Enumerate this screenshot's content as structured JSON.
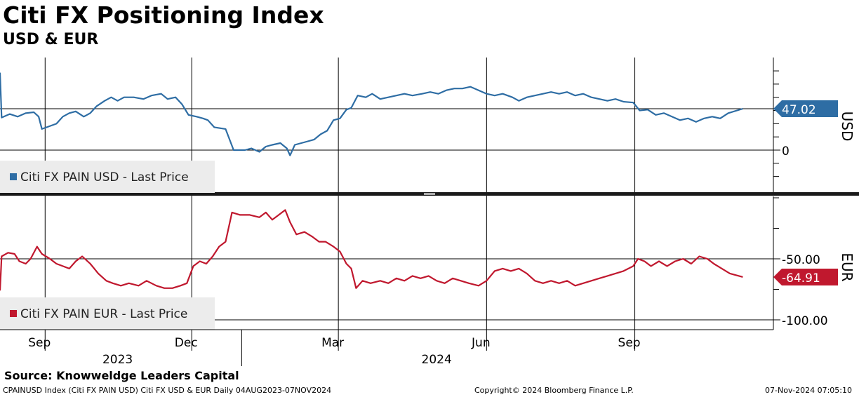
{
  "header": {
    "title": "Citi FX Positioning Index",
    "subtitle": "USD & EUR"
  },
  "footer": {
    "source": "Source: Knowweldge Leaders Capital",
    "ticker": "CPAINUSD Index (Citi FX PAIN USD) Citi FX USD & EUR  Daily 04AUG2023-07NOV2024",
    "copyright": "Copyright© 2024 Bloomberg Finance L.P.",
    "timestamp": "07-Nov-2024 07:05:10"
  },
  "chart_data": [
    {
      "type": "line",
      "panel": "top",
      "axis_label": "USD",
      "y_ticks": [
        0
      ],
      "y_tick_labels": [
        "0"
      ],
      "ylim": [
        -40,
        90
      ],
      "grid": true,
      "legend": "bottom-left",
      "last_value_label": "47.02",
      "color": "#2e6da4",
      "series": [
        {
          "name": "Citi FX PAIN USD - Last Price",
          "points": [
            [
              "2023-08-04",
              88
            ],
            [
              "2023-08-05",
              37
            ],
            [
              "2023-08-10",
              41
            ],
            [
              "2023-08-15",
              38
            ],
            [
              "2023-08-20",
              42
            ],
            [
              "2023-08-25",
              43
            ],
            [
              "2023-08-28",
              38
            ],
            [
              "2023-08-30",
              24
            ],
            [
              "2023-09-05",
              28
            ],
            [
              "2023-09-08",
              30
            ],
            [
              "2023-09-12",
              38
            ],
            [
              "2023-09-16",
              42
            ],
            [
              "2023-09-20",
              44
            ],
            [
              "2023-09-25",
              38
            ],
            [
              "2023-09-29",
              42
            ],
            [
              "2023-10-03",
              50
            ],
            [
              "2023-10-08",
              56
            ],
            [
              "2023-10-12",
              60
            ],
            [
              "2023-10-16",
              56
            ],
            [
              "2023-10-20",
              60
            ],
            [
              "2023-10-26",
              60
            ],
            [
              "2023-11-01",
              58
            ],
            [
              "2023-11-06",
              62
            ],
            [
              "2023-11-12",
              64
            ],
            [
              "2023-11-16",
              58
            ],
            [
              "2023-11-21",
              60
            ],
            [
              "2023-11-25",
              52
            ],
            [
              "2023-11-29",
              40
            ],
            [
              "2023-12-04",
              38
            ],
            [
              "2023-12-08",
              36
            ],
            [
              "2023-12-11",
              34
            ],
            [
              "2023-12-15",
              26
            ],
            [
              "2023-12-22",
              24
            ],
            [
              "2023-12-27",
              0
            ],
            [
              "2024-01-03",
              0
            ],
            [
              "2024-01-07",
              2
            ],
            [
              "2024-01-12",
              -2
            ],
            [
              "2024-01-16",
              4
            ],
            [
              "2024-01-20",
              6
            ],
            [
              "2024-01-25",
              8
            ],
            [
              "2024-01-29",
              2
            ],
            [
              "2024-01-31",
              -6
            ],
            [
              "2024-02-03",
              6
            ],
            [
              "2024-02-07",
              8
            ],
            [
              "2024-02-11",
              10
            ],
            [
              "2024-02-15",
              12
            ],
            [
              "2024-02-19",
              18
            ],
            [
              "2024-02-23",
              22
            ],
            [
              "2024-02-27",
              34
            ],
            [
              "2024-03-02",
              36
            ],
            [
              "2024-03-06",
              46
            ],
            [
              "2024-03-09",
              48
            ],
            [
              "2024-03-13",
              62
            ],
            [
              "2024-03-18",
              60
            ],
            [
              "2024-03-22",
              64
            ],
            [
              "2024-03-27",
              58
            ],
            [
              "2024-04-01",
              60
            ],
            [
              "2024-04-06",
              62
            ],
            [
              "2024-04-11",
              64
            ],
            [
              "2024-04-16",
              62
            ],
            [
              "2024-04-22",
              64
            ],
            [
              "2024-04-27",
              66
            ],
            [
              "2024-05-02",
              64
            ],
            [
              "2024-05-07",
              68
            ],
            [
              "2024-05-12",
              70
            ],
            [
              "2024-05-17",
              70
            ],
            [
              "2024-05-22",
              72
            ],
            [
              "2024-05-27",
              68
            ],
            [
              "2024-06-01",
              64
            ],
            [
              "2024-06-06",
              62
            ],
            [
              "2024-06-11",
              64
            ],
            [
              "2024-06-17",
              60
            ],
            [
              "2024-06-21",
              56
            ],
            [
              "2024-06-26",
              60
            ],
            [
              "2024-07-01",
              62
            ],
            [
              "2024-07-06",
              64
            ],
            [
              "2024-07-11",
              66
            ],
            [
              "2024-07-16",
              64
            ],
            [
              "2024-07-21",
              66
            ],
            [
              "2024-07-26",
              62
            ],
            [
              "2024-07-31",
              64
            ],
            [
              "2024-08-05",
              60
            ],
            [
              "2024-08-10",
              58
            ],
            [
              "2024-08-15",
              56
            ],
            [
              "2024-08-20",
              58
            ],
            [
              "2024-08-25",
              55
            ],
            [
              "2024-08-31",
              54
            ],
            [
              "2024-09-04",
              45
            ],
            [
              "2024-09-09",
              46
            ],
            [
              "2024-09-14",
              40
            ],
            [
              "2024-09-19",
              42
            ],
            [
              "2024-09-24",
              38
            ],
            [
              "2024-09-29",
              34
            ],
            [
              "2024-10-04",
              36
            ],
            [
              "2024-10-09",
              32
            ],
            [
              "2024-10-14",
              36
            ],
            [
              "2024-10-19",
              38
            ],
            [
              "2024-10-24",
              36
            ],
            [
              "2024-10-29",
              42
            ],
            [
              "2024-11-07",
              47.02
            ]
          ]
        }
      ]
    },
    {
      "type": "line",
      "panel": "bottom",
      "axis_label": "EUR",
      "y_ticks": [
        -50,
        -100
      ],
      "y_tick_labels": [
        "-50.00",
        "-100.00"
      ],
      "ylim": [
        -100,
        0
      ],
      "grid": true,
      "legend": "bottom-left",
      "last_value_label": "-64.91",
      "color": "#c0182e",
      "series": [
        {
          "name": "Citi FX PAIN EUR - Last Price",
          "points": [
            [
              "2023-08-04",
              -76
            ],
            [
              "2023-08-05",
              -48
            ],
            [
              "2023-08-09",
              -45
            ],
            [
              "2023-08-13",
              -46
            ],
            [
              "2023-08-16",
              -52
            ],
            [
              "2023-08-20",
              -54
            ],
            [
              "2023-08-23",
              -50
            ],
            [
              "2023-08-27",
              -40
            ],
            [
              "2023-08-30",
              -46
            ],
            [
              "2023-09-04",
              -50
            ],
            [
              "2023-09-08",
              -54
            ],
            [
              "2023-09-12",
              -56
            ],
            [
              "2023-09-16",
              -58
            ],
            [
              "2023-09-20",
              -52
            ],
            [
              "2023-09-24",
              -48
            ],
            [
              "2023-09-29",
              -54
            ],
            [
              "2023-10-04",
              -62
            ],
            [
              "2023-10-09",
              -68
            ],
            [
              "2023-10-13",
              -70
            ],
            [
              "2023-10-18",
              -72
            ],
            [
              "2023-10-23",
              -70
            ],
            [
              "2023-10-29",
              -72
            ],
            [
              "2023-11-03",
              -68
            ],
            [
              "2023-11-09",
              -72
            ],
            [
              "2023-11-14",
              -74
            ],
            [
              "2023-11-19",
              -74
            ],
            [
              "2023-11-24",
              -72
            ],
            [
              "2023-11-28",
              -70
            ],
            [
              "2023-12-02",
              -56
            ],
            [
              "2023-12-06",
              -52
            ],
            [
              "2023-12-10",
              -54
            ],
            [
              "2023-12-14",
              -48
            ],
            [
              "2023-12-18",
              -40
            ],
            [
              "2023-12-22",
              -36
            ],
            [
              "2023-12-26",
              -12
            ],
            [
              "2023-12-31",
              -14
            ],
            [
              "2024-01-06",
              -14
            ],
            [
              "2024-01-12",
              -16
            ],
            [
              "2024-01-16",
              -12
            ],
            [
              "2024-01-20",
              -18
            ],
            [
              "2024-01-24",
              -14
            ],
            [
              "2024-01-28",
              -10
            ],
            [
              "2024-01-31",
              -20
            ],
            [
              "2024-02-04",
              -30
            ],
            [
              "2024-02-09",
              -28
            ],
            [
              "2024-02-14",
              -32
            ],
            [
              "2024-02-18",
              -36
            ],
            [
              "2024-02-22",
              -36
            ],
            [
              "2024-02-27",
              -40
            ],
            [
              "2024-03-02",
              -44
            ],
            [
              "2024-03-06",
              -54
            ],
            [
              "2024-03-09",
              -58
            ],
            [
              "2024-03-12",
              -74
            ],
            [
              "2024-03-16",
              -68
            ],
            [
              "2024-03-21",
              -70
            ],
            [
              "2024-03-27",
              -68
            ],
            [
              "2024-04-01",
              -70
            ],
            [
              "2024-04-06",
              -66
            ],
            [
              "2024-04-11",
              -68
            ],
            [
              "2024-04-16",
              -64
            ],
            [
              "2024-04-21",
              -66
            ],
            [
              "2024-04-26",
              -64
            ],
            [
              "2024-05-01",
              -68
            ],
            [
              "2024-05-06",
              -70
            ],
            [
              "2024-05-11",
              -66
            ],
            [
              "2024-05-16",
              -68
            ],
            [
              "2024-05-21",
              -70
            ],
            [
              "2024-05-27",
              -72
            ],
            [
              "2024-06-01",
              -68
            ],
            [
              "2024-06-06",
              -60
            ],
            [
              "2024-06-11",
              -58
            ],
            [
              "2024-06-16",
              -60
            ],
            [
              "2024-06-21",
              -58
            ],
            [
              "2024-06-26",
              -62
            ],
            [
              "2024-07-01",
              -68
            ],
            [
              "2024-07-06",
              -70
            ],
            [
              "2024-07-11",
              -68
            ],
            [
              "2024-07-16",
              -70
            ],
            [
              "2024-07-21",
              -68
            ],
            [
              "2024-07-26",
              -72
            ],
            [
              "2024-07-31",
              -70
            ],
            [
              "2024-08-05",
              -68
            ],
            [
              "2024-08-10",
              -66
            ],
            [
              "2024-08-15",
              -64
            ],
            [
              "2024-08-20",
              -62
            ],
            [
              "2024-08-25",
              -60
            ],
            [
              "2024-08-31",
              -56
            ],
            [
              "2024-09-03",
              -50
            ],
            [
              "2024-09-07",
              -52
            ],
            [
              "2024-09-11",
              -56
            ],
            [
              "2024-09-16",
              -52
            ],
            [
              "2024-09-21",
              -56
            ],
            [
              "2024-09-26",
              -52
            ],
            [
              "2024-10-01",
              -50
            ],
            [
              "2024-10-06",
              -54
            ],
            [
              "2024-10-11",
              -48
            ],
            [
              "2024-10-16",
              -50
            ],
            [
              "2024-10-20",
              -54
            ],
            [
              "2024-10-25",
              -58
            ],
            [
              "2024-10-30",
              -62
            ],
            [
              "2024-11-07",
              -64.91
            ]
          ]
        }
      ]
    }
  ],
  "x_axis": {
    "month_ticks": [
      {
        "label": "Sep",
        "date": "2023-09-01"
      },
      {
        "label": "Dec",
        "date": "2023-12-01"
      },
      {
        "label": "Mar",
        "date": "2024-03-01"
      },
      {
        "label": "Jun",
        "date": "2024-06-01"
      },
      {
        "label": "Sep",
        "date": "2024-09-01"
      }
    ],
    "year_labels": [
      {
        "label": "2023",
        "date": "2023-10-16"
      },
      {
        "label": "2024",
        "date": "2024-05-01"
      }
    ],
    "range": [
      "2023-08-04",
      "2024-11-26"
    ]
  }
}
